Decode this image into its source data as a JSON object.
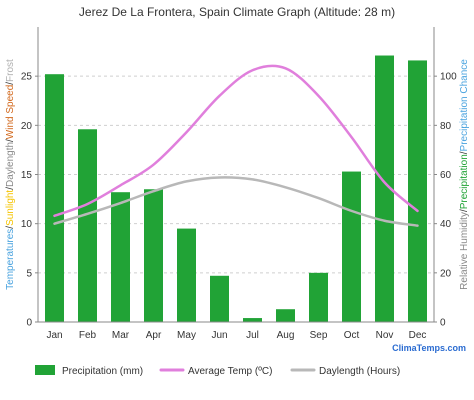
{
  "chart_data": {
    "type": "bar",
    "title": "Jerez De La Frontera, Spain Climate Graph (Altitude: 28 m)",
    "categories": [
      "Jan",
      "Feb",
      "Mar",
      "Apr",
      "May",
      "Jun",
      "Jul",
      "Aug",
      "Sep",
      "Oct",
      "Nov",
      "Dec"
    ],
    "series": [
      {
        "name": "Precipitation (mm)",
        "type": "bar",
        "axis": "left",
        "color": "#21a336",
        "values": [
          25.2,
          19.6,
          13.2,
          13.5,
          9.5,
          4.7,
          0.4,
          1.3,
          5.0,
          15.3,
          27.1,
          26.6
        ]
      },
      {
        "name": "Average Temp (ºC)",
        "type": "line",
        "axis": "left",
        "color": "#e07fdc",
        "values": [
          10.8,
          12.0,
          13.9,
          16.0,
          19.3,
          23.0,
          25.6,
          25.8,
          23.0,
          18.8,
          14.2,
          11.3
        ]
      },
      {
        "name": "Daylength (Hours)",
        "type": "line",
        "axis": "left",
        "color": "#b8b8b8",
        "values": [
          10.0,
          11.0,
          12.1,
          13.3,
          14.3,
          14.7,
          14.5,
          13.7,
          12.6,
          11.3,
          10.3,
          9.8
        ]
      }
    ],
    "y_left": {
      "ylim": [
        0,
        30
      ],
      "ticks": [
        "0",
        "5",
        "10",
        "15",
        "20",
        "25"
      ],
      "label_parts": [
        {
          "text": "Temperatures",
          "color": "#4aa3df"
        },
        {
          "text": "/",
          "color": "#333333"
        },
        {
          "text": "Sunlight",
          "color": "#f5c400"
        },
        {
          "text": "/",
          "color": "#333333"
        },
        {
          "text": "Daylength",
          "color": "#8a8a8a"
        },
        {
          "text": "/",
          "color": "#333333"
        },
        {
          "text": "Wind Speed",
          "color": "#d2691e"
        },
        {
          "text": "/",
          "color": "#333333"
        },
        {
          "text": "Frost",
          "color": "#b0b0b0"
        }
      ]
    },
    "y_right": {
      "ylim": [
        0,
        120
      ],
      "ticks": [
        "0",
        "20",
        "40",
        "60",
        "80",
        "100"
      ],
      "label_parts": [
        {
          "text": "Relative Humidity",
          "color": "#8a8a8a"
        },
        {
          "text": "/",
          "color": "#333333"
        },
        {
          "text": "Precipitation",
          "color": "#21a336"
        },
        {
          "text": "/",
          "color": "#333333"
        },
        {
          "text": "Precipitation Chance",
          "color": "#4aa3df"
        }
      ]
    },
    "grid": true,
    "legend_position": "bottom",
    "brand": {
      "text": "ClimaTemps.com",
      "color": "#2b6cd1"
    }
  }
}
